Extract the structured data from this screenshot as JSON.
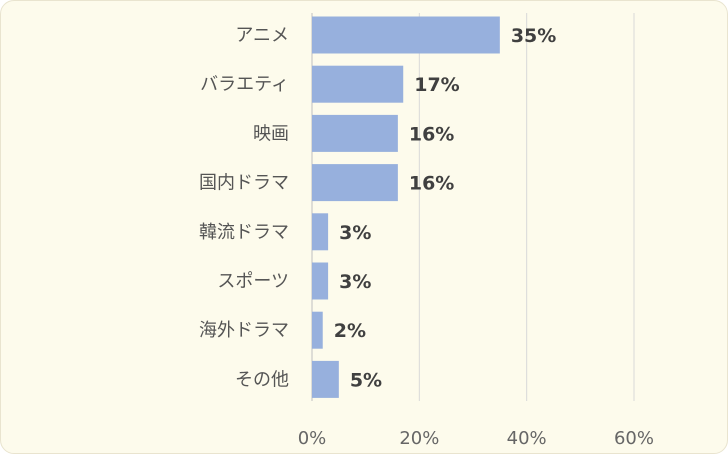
{
  "chart_data": {
    "type": "bar",
    "orientation": "horizontal",
    "categories": [
      "アニメ",
      "バラエティ",
      "映画",
      "国内ドラマ",
      "韓流ドラマ",
      "スポーツ",
      "海外ドラマ",
      "その他"
    ],
    "values": [
      35,
      17,
      16,
      16,
      3,
      3,
      2,
      5
    ],
    "value_labels": [
      "35%",
      "17%",
      "16%",
      "16%",
      "3%",
      "3%",
      "2%",
      "5%"
    ],
    "xlim": [
      0,
      60
    ],
    "xticks": [
      0,
      20,
      40,
      60
    ],
    "xtick_labels": [
      "0%",
      "20%",
      "40%",
      "60%"
    ],
    "grid": true,
    "bar_color": "#97b0dd",
    "background_color": "#fdfbec"
  }
}
